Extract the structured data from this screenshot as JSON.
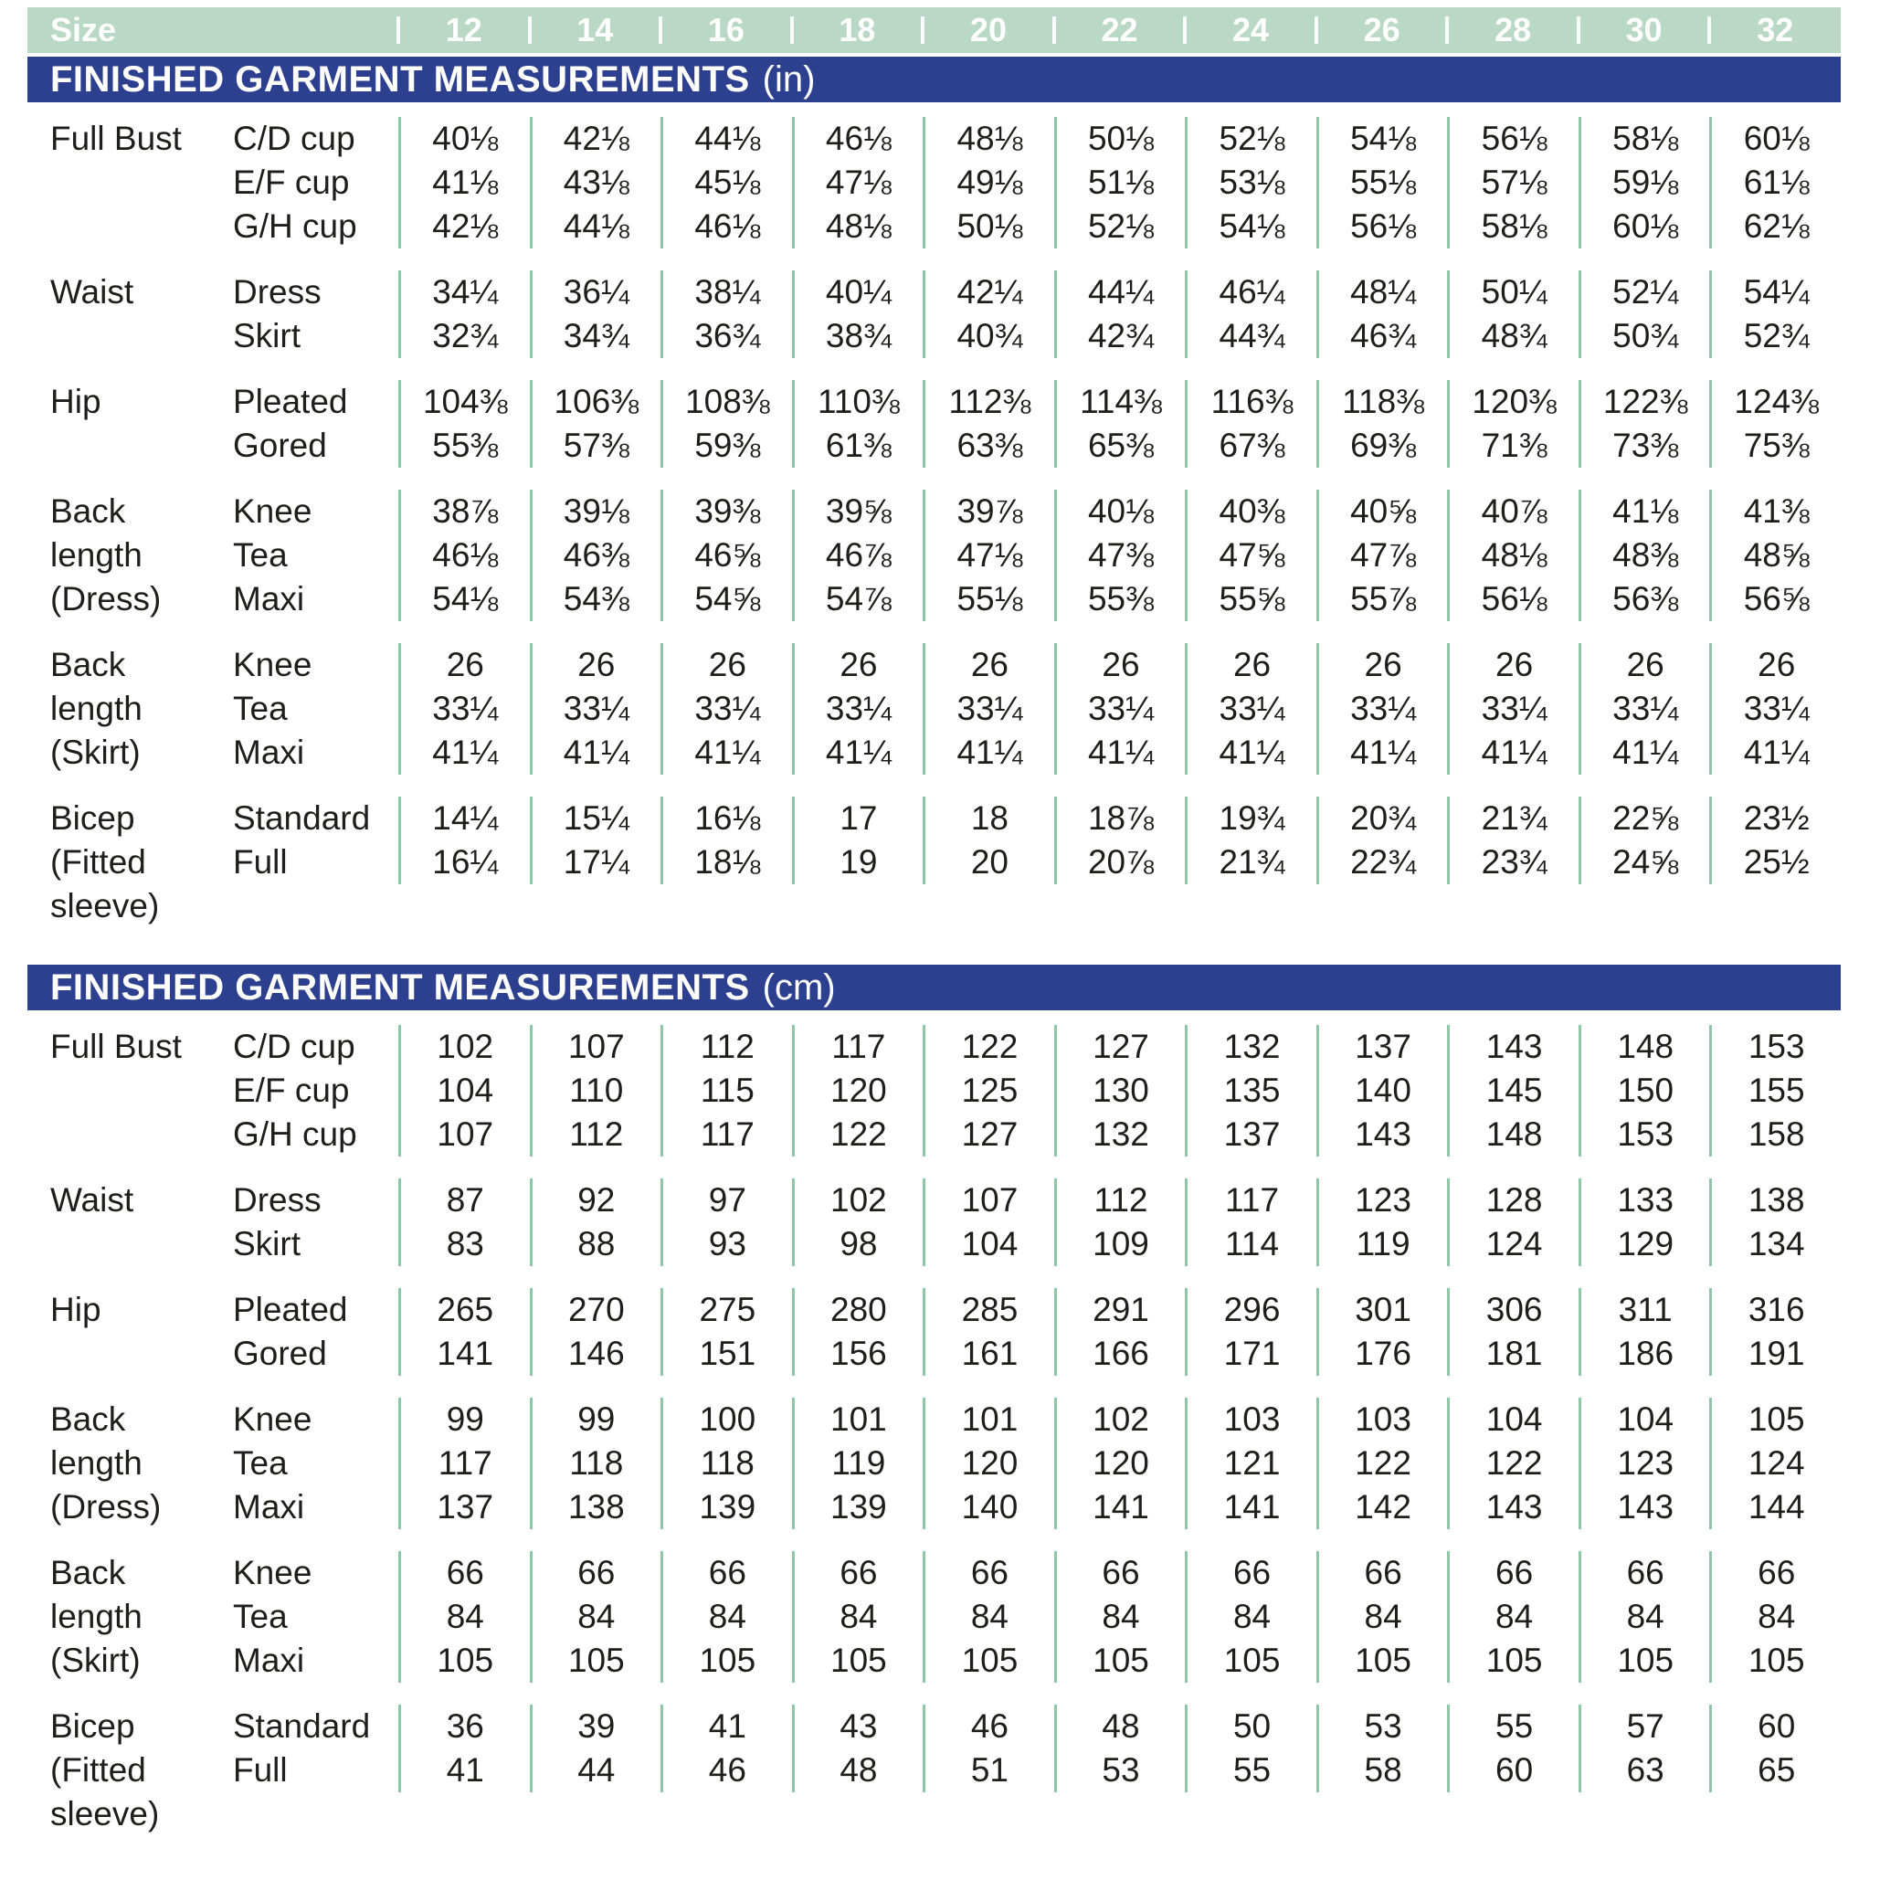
{
  "colors": {
    "header_green": "#b9d8c6",
    "banner_blue": "#2d3f8f",
    "separator_teal": "#8fc6aa",
    "text": "#1e1e1c",
    "header_text": "#ffffff"
  },
  "size_header": {
    "label": "Size",
    "sizes": [
      "12",
      "14",
      "16",
      "18",
      "20",
      "22",
      "24",
      "26",
      "28",
      "30",
      "32"
    ]
  },
  "sections": [
    {
      "banner": {
        "title": "FINISHED GARMENT MEASUREMENTS",
        "unit": "(in)"
      },
      "groups": [
        {
          "label_lines": [
            "Full Bust"
          ],
          "rows": [
            {
              "variant": "C/D cup",
              "values": [
                "40⅛",
                "42⅛",
                "44⅛",
                "46⅛",
                "48⅛",
                "50⅛",
                "52⅛",
                "54⅛",
                "56⅛",
                "58⅛",
                "60⅛"
              ]
            },
            {
              "variant": "E/F cup",
              "values": [
                "41⅛",
                "43⅛",
                "45⅛",
                "47⅛",
                "49⅛",
                "51⅛",
                "53⅛",
                "55⅛",
                "57⅛",
                "59⅛",
                "61⅛"
              ]
            },
            {
              "variant": "G/H cup",
              "values": [
                "42⅛",
                "44⅛",
                "46⅛",
                "48⅛",
                "50⅛",
                "52⅛",
                "54⅛",
                "56⅛",
                "58⅛",
                "60⅛",
                "62⅛"
              ]
            }
          ]
        },
        {
          "label_lines": [
            "Waist"
          ],
          "rows": [
            {
              "variant": "Dress",
              "values": [
                "34¼",
                "36¼",
                "38¼",
                "40¼",
                "42¼",
                "44¼",
                "46¼",
                "48¼",
                "50¼",
                "52¼",
                "54¼"
              ]
            },
            {
              "variant": "Skirt",
              "values": [
                "32¾",
                "34¾",
                "36¾",
                "38¾",
                "40¾",
                "42¾",
                "44¾",
                "46¾",
                "48¾",
                "50¾",
                "52¾"
              ]
            }
          ]
        },
        {
          "label_lines": [
            "Hip"
          ],
          "rows": [
            {
              "variant": "Pleated",
              "values": [
                "104⅜",
                "106⅜",
                "108⅜",
                "110⅜",
                "112⅜",
                "114⅜",
                "116⅜",
                "118⅜",
                "120⅜",
                "122⅜",
                "124⅜"
              ]
            },
            {
              "variant": "Gored",
              "values": [
                "55⅜",
                "57⅜",
                "59⅜",
                "61⅜",
                "63⅜",
                "65⅜",
                "67⅜",
                "69⅜",
                "71⅜",
                "73⅜",
                "75⅜"
              ]
            }
          ]
        },
        {
          "label_lines": [
            "Back",
            "length",
            "(Dress)"
          ],
          "rows": [
            {
              "variant": "Knee",
              "values": [
                "38⅞",
                "39⅛",
                "39⅜",
                "39⅝",
                "39⅞",
                "40⅛",
                "40⅜",
                "40⅝",
                "40⅞",
                "41⅛",
                "41⅜"
              ]
            },
            {
              "variant": "Tea",
              "values": [
                "46⅛",
                "46⅜",
                "46⅝",
                "46⅞",
                "47⅛",
                "47⅜",
                "47⅝",
                "47⅞",
                "48⅛",
                "48⅜",
                "48⅝"
              ]
            },
            {
              "variant": "Maxi",
              "values": [
                "54⅛",
                "54⅜",
                "54⅝",
                "54⅞",
                "55⅛",
                "55⅜",
                "55⅝",
                "55⅞",
                "56⅛",
                "56⅜",
                "56⅝"
              ]
            }
          ]
        },
        {
          "label_lines": [
            "Back",
            "length",
            "(Skirt)"
          ],
          "rows": [
            {
              "variant": "Knee",
              "values": [
                "26",
                "26",
                "26",
                "26",
                "26",
                "26",
                "26",
                "26",
                "26",
                "26",
                "26"
              ]
            },
            {
              "variant": "Tea",
              "values": [
                "33¼",
                "33¼",
                "33¼",
                "33¼",
                "33¼",
                "33¼",
                "33¼",
                "33¼",
                "33¼",
                "33¼",
                "33¼"
              ]
            },
            {
              "variant": "Maxi",
              "values": [
                "41¼",
                "41¼",
                "41¼",
                "41¼",
                "41¼",
                "41¼",
                "41¼",
                "41¼",
                "41¼",
                "41¼",
                "41¼"
              ]
            }
          ]
        },
        {
          "label_lines": [
            "Bicep",
            "(Fitted",
            "sleeve)"
          ],
          "rows": [
            {
              "variant": "Standard",
              "values": [
                "14¼",
                "15¼",
                "16⅛",
                "17",
                "18",
                "18⅞",
                "19¾",
                "20¾",
                "21¾",
                "22⅝",
                "23½"
              ]
            },
            {
              "variant": "Full",
              "values": [
                "16¼",
                "17¼",
                "18⅛",
                "19",
                "20",
                "20⅞",
                "21¾",
                "22¾",
                "23¾",
                "24⅝",
                "25½"
              ]
            }
          ]
        }
      ]
    },
    {
      "banner": {
        "title": "FINISHED GARMENT MEASUREMENTS",
        "unit": "(cm)"
      },
      "groups": [
        {
          "label_lines": [
            "Full Bust"
          ],
          "rows": [
            {
              "variant": "C/D cup",
              "values": [
                "102",
                "107",
                "112",
                "117",
                "122",
                "127",
                "132",
                "137",
                "143",
                "148",
                "153"
              ]
            },
            {
              "variant": "E/F cup",
              "values": [
                "104",
                "110",
                "115",
                "120",
                "125",
                "130",
                "135",
                "140",
                "145",
                "150",
                "155"
              ]
            },
            {
              "variant": "G/H cup",
              "values": [
                "107",
                "112",
                "117",
                "122",
                "127",
                "132",
                "137",
                "143",
                "148",
                "153",
                "158"
              ]
            }
          ]
        },
        {
          "label_lines": [
            "Waist"
          ],
          "rows": [
            {
              "variant": "Dress",
              "values": [
                "87",
                "92",
                "97",
                "102",
                "107",
                "112",
                "117",
                "123",
                "128",
                "133",
                "138"
              ]
            },
            {
              "variant": "Skirt",
              "values": [
                "83",
                "88",
                "93",
                "98",
                "104",
                "109",
                "114",
                "119",
                "124",
                "129",
                "134"
              ]
            }
          ]
        },
        {
          "label_lines": [
            "Hip"
          ],
          "rows": [
            {
              "variant": "Pleated",
              "values": [
                "265",
                "270",
                "275",
                "280",
                "285",
                "291",
                "296",
                "301",
                "306",
                "311",
                "316"
              ]
            },
            {
              "variant": "Gored",
              "values": [
                "141",
                "146",
                "151",
                "156",
                "161",
                "166",
                "171",
                "176",
                "181",
                "186",
                "191"
              ]
            }
          ]
        },
        {
          "label_lines": [
            "Back",
            "length",
            "(Dress)"
          ],
          "rows": [
            {
              "variant": "Knee",
              "values": [
                "99",
                "99",
                "100",
                "101",
                "101",
                "102",
                "103",
                "103",
                "104",
                "104",
                "105"
              ]
            },
            {
              "variant": "Tea",
              "values": [
                "117",
                "118",
                "118",
                "119",
                "120",
                "120",
                "121",
                "122",
                "122",
                "123",
                "124"
              ]
            },
            {
              "variant": "Maxi",
              "values": [
                "137",
                "138",
                "139",
                "139",
                "140",
                "141",
                "141",
                "142",
                "143",
                "143",
                "144"
              ]
            }
          ]
        },
        {
          "label_lines": [
            "Back",
            "length",
            "(Skirt)"
          ],
          "rows": [
            {
              "variant": "Knee",
              "values": [
                "66",
                "66",
                "66",
                "66",
                "66",
                "66",
                "66",
                "66",
                "66",
                "66",
                "66"
              ]
            },
            {
              "variant": "Tea",
              "values": [
                "84",
                "84",
                "84",
                "84",
                "84",
                "84",
                "84",
                "84",
                "84",
                "84",
                "84"
              ]
            },
            {
              "variant": "Maxi",
              "values": [
                "105",
                "105",
                "105",
                "105",
                "105",
                "105",
                "105",
                "105",
                "105",
                "105",
                "105"
              ]
            }
          ]
        },
        {
          "label_lines": [
            "Bicep",
            "(Fitted",
            "sleeve)"
          ],
          "rows": [
            {
              "variant": "Standard",
              "values": [
                "36",
                "39",
                "41",
                "43",
                "46",
                "48",
                "50",
                "53",
                "55",
                "57",
                "60"
              ]
            },
            {
              "variant": "Full",
              "values": [
                "41",
                "44",
                "46",
                "48",
                "51",
                "53",
                "55",
                "58",
                "60",
                "63",
                "65"
              ]
            }
          ]
        }
      ]
    }
  ]
}
